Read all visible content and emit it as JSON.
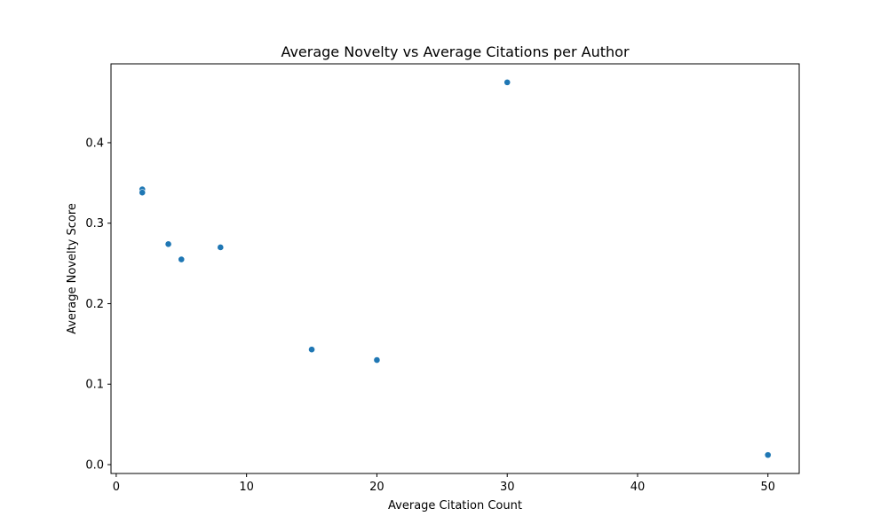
{
  "chart_data": {
    "type": "scatter",
    "title": "Average Novelty vs Average Citations per Author",
    "xlabel": "Average Citation Count",
    "ylabel": "Average Novelty Score",
    "xlim": [
      -0.4,
      52.4
    ],
    "ylim": [
      -0.011,
      0.498
    ],
    "xticks": [
      0,
      10,
      20,
      30,
      40,
      50
    ],
    "xtick_labels": [
      "0",
      "10",
      "20",
      "30",
      "40",
      "50"
    ],
    "yticks": [
      0.0,
      0.1,
      0.2,
      0.3,
      0.4
    ],
    "ytick_labels": [
      "0.0",
      "0.1",
      "0.2",
      "0.3",
      "0.4"
    ],
    "grid": false,
    "series": [
      {
        "color": "#1f77b4",
        "points": [
          {
            "x": 2,
            "y": 0.342
          },
          {
            "x": 2,
            "y": 0.338
          },
          {
            "x": 4,
            "y": 0.274
          },
          {
            "x": 5,
            "y": 0.255
          },
          {
            "x": 8,
            "y": 0.27
          },
          {
            "x": 15,
            "y": 0.143
          },
          {
            "x": 20,
            "y": 0.13
          },
          {
            "x": 30,
            "y": 0.475
          },
          {
            "x": 50,
            "y": 0.012
          }
        ]
      }
    ]
  }
}
